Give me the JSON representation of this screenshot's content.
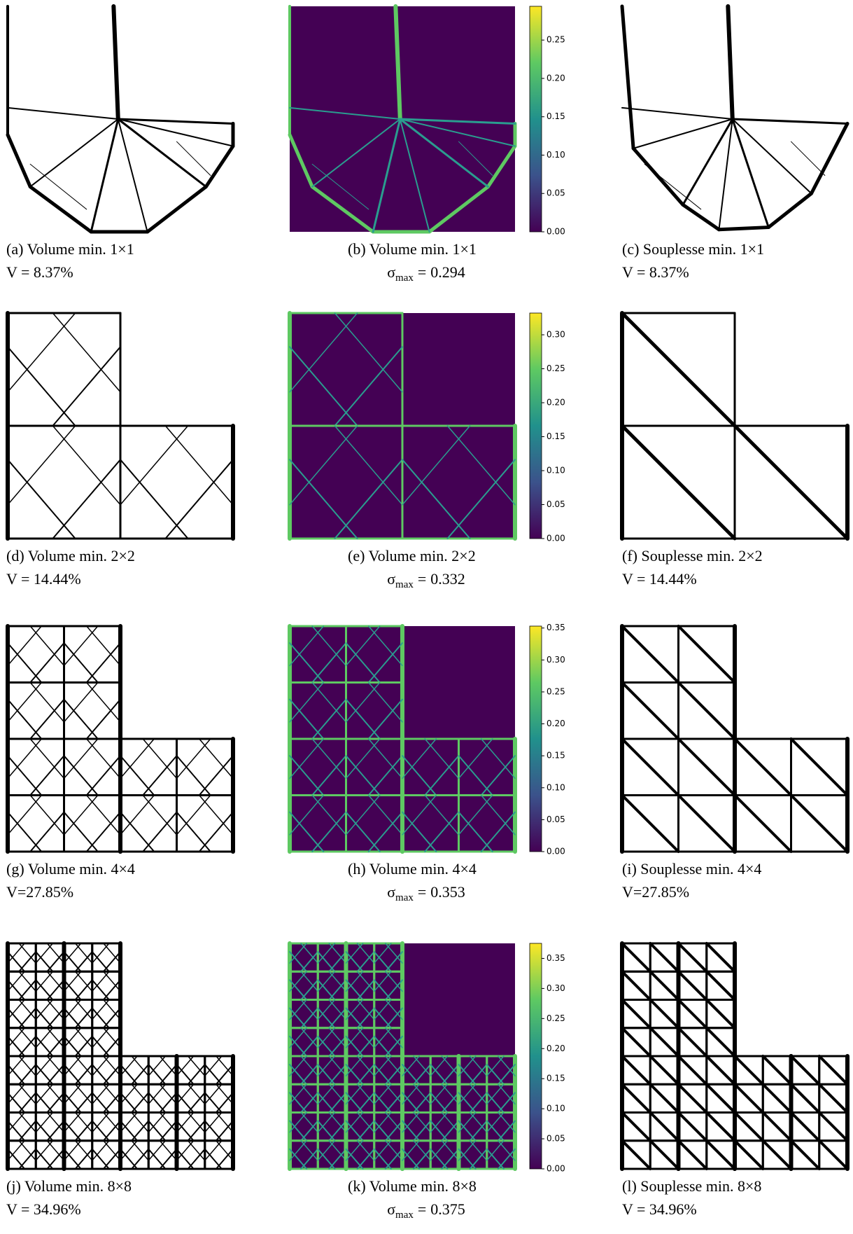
{
  "panels": [
    {
      "caption": "(a) Volume min. 1×1",
      "metric": "V = 8.37%"
    },
    {
      "caption": "(b) Volume min. 1×1",
      "metric": {
        "symbol": "σ",
        "subscript": "max",
        "operator": "=",
        "value": 0.294
      },
      "colorbar": {
        "lim": [
          0,
          0.294
        ],
        "ticks": [
          {
            "value": 0,
            "label": "0.00"
          },
          {
            "value": 0.05,
            "label": "0.05"
          },
          {
            "value": 0.1,
            "label": "0.10"
          },
          {
            "value": 0.15,
            "label": "0.15"
          },
          {
            "value": 0.2,
            "label": "0.20"
          },
          {
            "value": 0.25,
            "label": "0.25"
          }
        ]
      }
    },
    {
      "caption": "(c) Souplesse min. 1×1",
      "metric": "V = 8.37%"
    },
    {
      "caption": "(d) Volume min. 2×2",
      "metric": "V = 14.44%"
    },
    {
      "caption": "(e) Volume min. 2×2",
      "metric": {
        "symbol": "σ",
        "subscript": "max",
        "operator": "=",
        "value": 0.332
      },
      "colorbar": {
        "lim": [
          0,
          0.332
        ],
        "ticks": [
          {
            "value": 0,
            "label": "0.00"
          },
          {
            "value": 0.05,
            "label": "0.05"
          },
          {
            "value": 0.1,
            "label": "0.10"
          },
          {
            "value": 0.15,
            "label": "0.15"
          },
          {
            "value": 0.2,
            "label": "0.20"
          },
          {
            "value": 0.25,
            "label": "0.25"
          },
          {
            "value": 0.3,
            "label": "0.30"
          }
        ]
      }
    },
    {
      "caption": "(f) Souplesse min. 2×2",
      "metric": "V = 14.44%"
    },
    {
      "caption": "(g) Volume min. 4×4",
      "metric": "V=27.85%"
    },
    {
      "caption": "(h) Volume min. 4×4",
      "metric": {
        "symbol": "σ",
        "subscript": "max",
        "operator": "=",
        "value": 0.353
      },
      "colorbar": {
        "lim": [
          0,
          0.353
        ],
        "ticks": [
          {
            "value": 0,
            "label": "0.00"
          },
          {
            "value": 0.05,
            "label": "0.05"
          },
          {
            "value": 0.1,
            "label": "0.10"
          },
          {
            "value": 0.15,
            "label": "0.15"
          },
          {
            "value": 0.2,
            "label": "0.20"
          },
          {
            "value": 0.25,
            "label": "0.25"
          },
          {
            "value": 0.3,
            "label": "0.30"
          },
          {
            "value": 0.35,
            "label": "0.35"
          }
        ]
      }
    },
    {
      "caption": "(i) Souplesse min. 4×4",
      "metric": "V=27.85%"
    },
    {
      "caption": "(j) Volume min. 8×8",
      "metric": "V = 34.96%"
    },
    {
      "caption": "(k) Volume min. 8×8",
      "metric": {
        "symbol": "σ",
        "subscript": "max",
        "operator": "=",
        "value": 0.375
      },
      "colorbar": {
        "lim": [
          0,
          0.375
        ],
        "ticks": [
          {
            "value": 0,
            "label": "0.00"
          },
          {
            "value": 0.05,
            "label": "0.05"
          },
          {
            "value": 0.1,
            "label": "0.10"
          },
          {
            "value": 0.15,
            "label": "0.15"
          },
          {
            "value": 0.2,
            "label": "0.20"
          },
          {
            "value": 0.25,
            "label": "0.25"
          },
          {
            "value": 0.3,
            "label": "0.30"
          },
          {
            "value": 0.35,
            "label": "0.35"
          }
        ]
      }
    },
    {
      "caption": "(l) Souplesse min. 8×8",
      "metric": "V = 34.96%"
    }
  ]
}
